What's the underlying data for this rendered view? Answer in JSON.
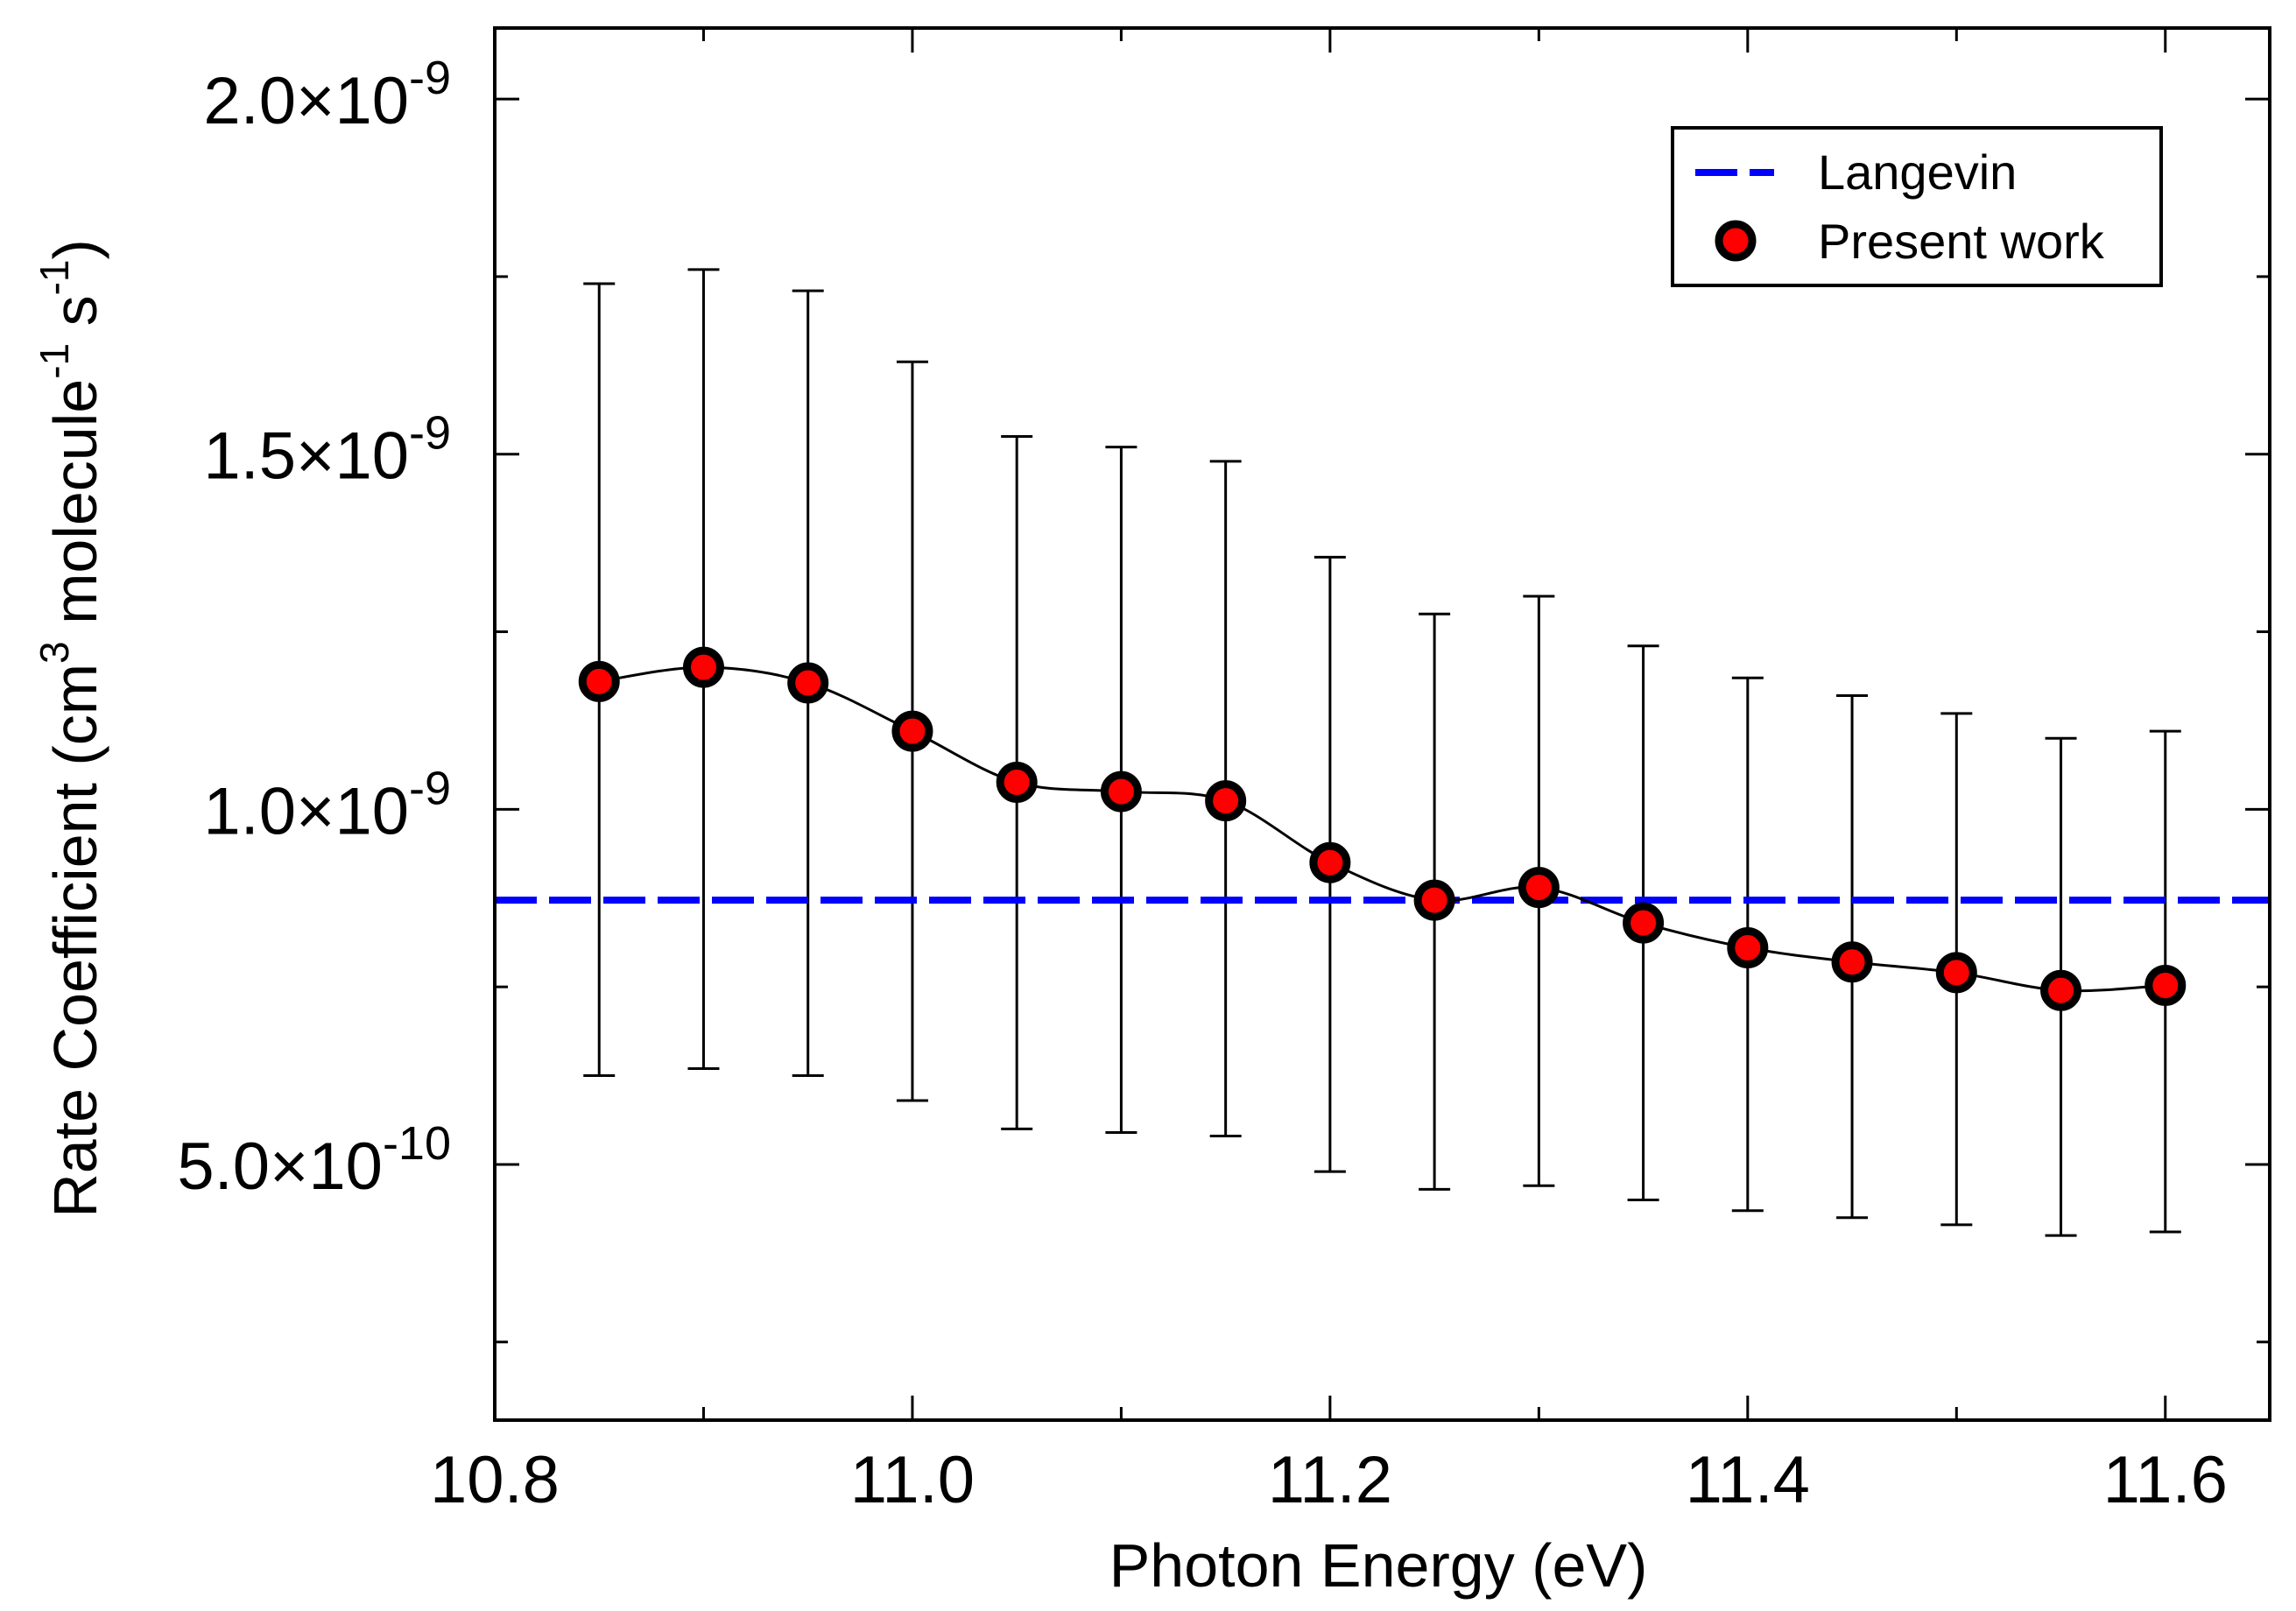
{
  "chart_data": {
    "type": "scatter",
    "title": "",
    "xlabel": "Photon Energy (eV)",
    "ylabel": {
      "prefix": "Rate Coefficient (cm",
      "sup1": "3",
      "mid": " molecule",
      "sup2": "-1",
      "mid2": " s",
      "sup3": "-1",
      "suffix": ")"
    },
    "xlim": [
      10.8,
      11.65
    ],
    "ylim": [
      1.4e-10,
      2.1e-09
    ],
    "x_ticks": [
      {
        "value": 10.8,
        "label": "10.8"
      },
      {
        "value": 11.0,
        "label": "11.0"
      },
      {
        "value": 11.2,
        "label": "11.2"
      },
      {
        "value": 11.4,
        "label": "11.4"
      },
      {
        "value": 11.6,
        "label": "11.6"
      }
    ],
    "y_ticks": [
      {
        "value": 5e-10,
        "mantissa": "5.0",
        "exponent": "-10"
      },
      {
        "value": 1e-09,
        "mantissa": "1.0",
        "exponent": "-9"
      },
      {
        "value": 1.5e-09,
        "mantissa": "1.5",
        "exponent": "-9"
      },
      {
        "value": 2e-09,
        "mantissa": "2.0",
        "exponent": "-9"
      }
    ],
    "x_minor_step": 0.1,
    "y_minor_step": 2.5e-10,
    "grid": false,
    "legend_position": "top-right",
    "series": [
      {
        "name": "Langevin",
        "kind": "hline",
        "style": "dashed",
        "color": "#0000ff",
        "y": 8.72e-10
      },
      {
        "name": "Present work",
        "kind": "markers",
        "color": "#ff0000",
        "edge_color": "#000000",
        "x": [
          10.85,
          10.9,
          10.95,
          11.0,
          11.05,
          11.1,
          11.15,
          11.2,
          11.25,
          11.3,
          11.35,
          11.4,
          11.45,
          11.5,
          11.55,
          11.6
        ],
        "y": [
          1.18e-09,
          1.2e-09,
          1.178e-09,
          1.11e-09,
          1.038e-09,
          1.025e-09,
          1.012e-09,
          9.25e-10,
          8.72e-10,
          8.9e-10,
          8.4e-10,
          8.05e-10,
          7.85e-10,
          7.7e-10,
          7.45e-10,
          7.52e-10
        ],
        "y_err_low": [
          6.25e-10,
          6.35e-10,
          6.25e-10,
          5.9e-10,
          5.5e-10,
          5.45e-10,
          5.4e-10,
          4.9e-10,
          4.65e-10,
          4.7e-10,
          4.5e-10,
          4.35e-10,
          4.25e-10,
          4.15e-10,
          4e-10,
          4.05e-10
        ],
        "y_err_high": [
          1.74e-09,
          1.76e-09,
          1.73e-09,
          1.63e-09,
          1.525e-09,
          1.51e-09,
          1.49e-09,
          1.355e-09,
          1.275e-09,
          1.3e-09,
          1.23e-09,
          1.185e-09,
          1.16e-09,
          1.135e-09,
          1.1e-09,
          1.11e-09
        ]
      }
    ],
    "fit_curve": {
      "color": "#000000",
      "style": "smooth spline through markers"
    }
  }
}
